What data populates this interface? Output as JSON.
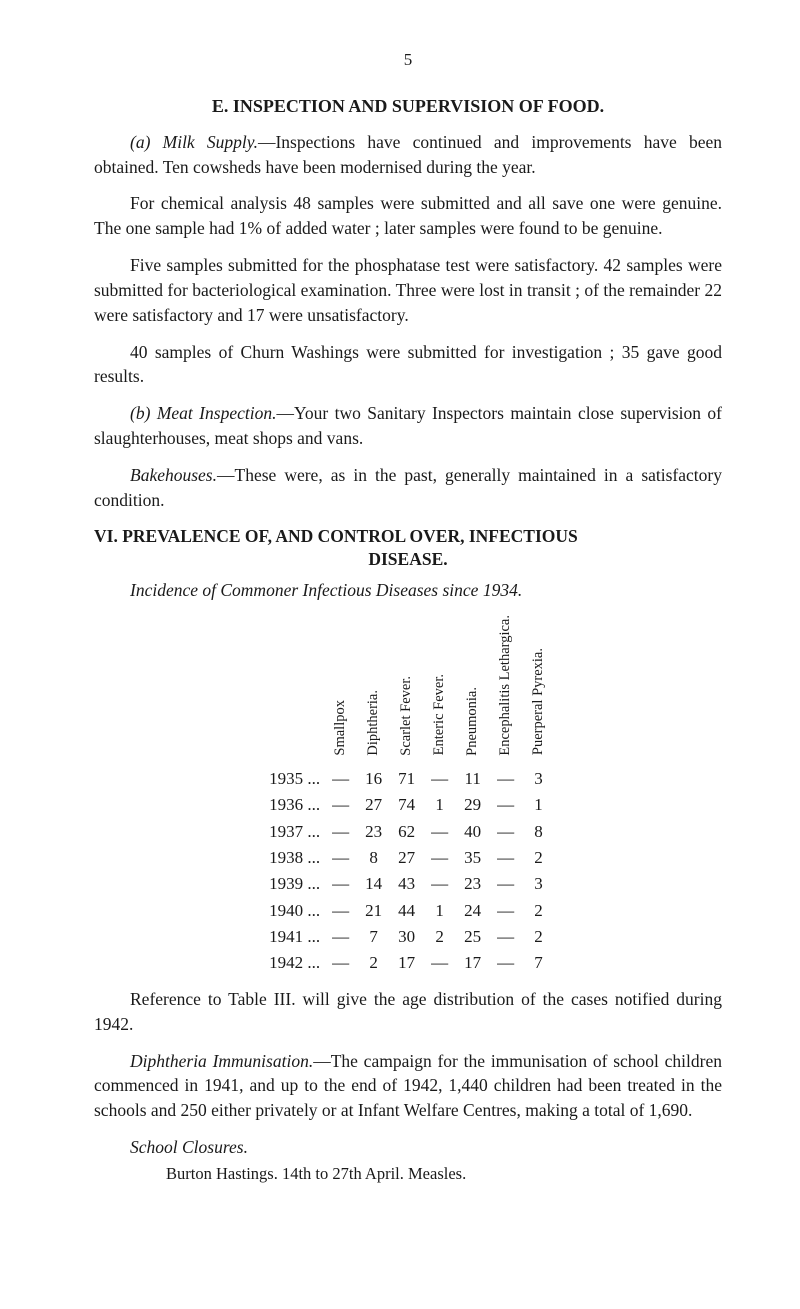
{
  "page_number": "5",
  "section_e": {
    "heading": "E.  INSPECTION AND SUPERVISION OF FOOD.",
    "p1_a": "(a) Milk Supply.",
    "p1_b": "—Inspections have continued and improvements have been obtained. Ten cowsheds have been modernised during the year.",
    "p2": "For chemical analysis 48 samples were submitted and all save one were genuine. The one sample had 1% of added water ; later samples were found to be genuine.",
    "p3": "Five samples submitted for the phosphatase test were satisfactory. 42 samples were submitted for bacteriological examination. Three were lost in transit ; of the remainder 22 were satisfactory and 17 were unsatisfactory.",
    "p4": "40 samples of Churn Washings were submitted for investigation ; 35 gave good results.",
    "p5_a": "(b) Meat Inspection.",
    "p5_b": "—Your two Sanitary Inspectors maintain close supervision of slaughterhouses, meat shops and vans.",
    "p6_a": "Bakehouses.",
    "p6_b": "—These were, as in the past, generally maintained in a satisfactory condition."
  },
  "section_vi": {
    "heading_l1": "VI. PREVALENCE OF, AND CONTROL OVER, INFECTIOUS",
    "heading_l2": "DISEASE.",
    "caption": "Incidence of Commoner Infectious Diseases since 1934.",
    "columns": [
      "",
      "Smallpox",
      "Diphtheria.",
      "Scarlet\nFever.",
      "Enteric\nFever.",
      "Pneumonia.",
      "Encephalitis\nLethargica.",
      "Puerperal\nPyrexia."
    ],
    "rows": [
      {
        "year": "1935 ...",
        "smallpox": "—",
        "diph": "16",
        "scarlet": "71",
        "enteric": "—",
        "pneu": "11",
        "enceph": "—",
        "puerp": "3"
      },
      {
        "year": "1936 ...",
        "smallpox": "—",
        "diph": "27",
        "scarlet": "74",
        "enteric": "1",
        "pneu": "29",
        "enceph": "—",
        "puerp": "1"
      },
      {
        "year": "1937 ...",
        "smallpox": "—",
        "diph": "23",
        "scarlet": "62",
        "enteric": "—",
        "pneu": "40",
        "enceph": "—",
        "puerp": "8"
      },
      {
        "year": "1938 ...",
        "smallpox": "—",
        "diph": "8",
        "scarlet": "27",
        "enteric": "—",
        "pneu": "35",
        "enceph": "—",
        "puerp": "2"
      },
      {
        "year": "1939 ...",
        "smallpox": "—",
        "diph": "14",
        "scarlet": "43",
        "enteric": "—",
        "pneu": "23",
        "enceph": "—",
        "puerp": "3"
      },
      {
        "year": "1940 ...",
        "smallpox": "—",
        "diph": "21",
        "scarlet": "44",
        "enteric": "1",
        "pneu": "24",
        "enceph": "—",
        "puerp": "2"
      },
      {
        "year": "1941 ...",
        "smallpox": "—",
        "diph": "7",
        "scarlet": "30",
        "enteric": "2",
        "pneu": "25",
        "enceph": "—",
        "puerp": "2"
      },
      {
        "year": "1942 ...",
        "smallpox": "—",
        "diph": "2",
        "scarlet": "17",
        "enteric": "—",
        "pneu": "17",
        "enceph": "—",
        "puerp": "7"
      }
    ],
    "ref": "Reference to Table III. will give the age distribution of the cases notified during 1942.",
    "imm_a": "Diphtheria Immunisation.",
    "imm_b": "—The campaign for the im­munisation of school children commenced in 1941, and up to the end of 1942, 1,440 children had been treated in the schools and 250 either privately or at Infant Welfare Centres, making a total of 1,690.",
    "closures_title": "School Closures.",
    "closures_line": "Burton Hastings.   14th to 27th April.   Measles."
  }
}
